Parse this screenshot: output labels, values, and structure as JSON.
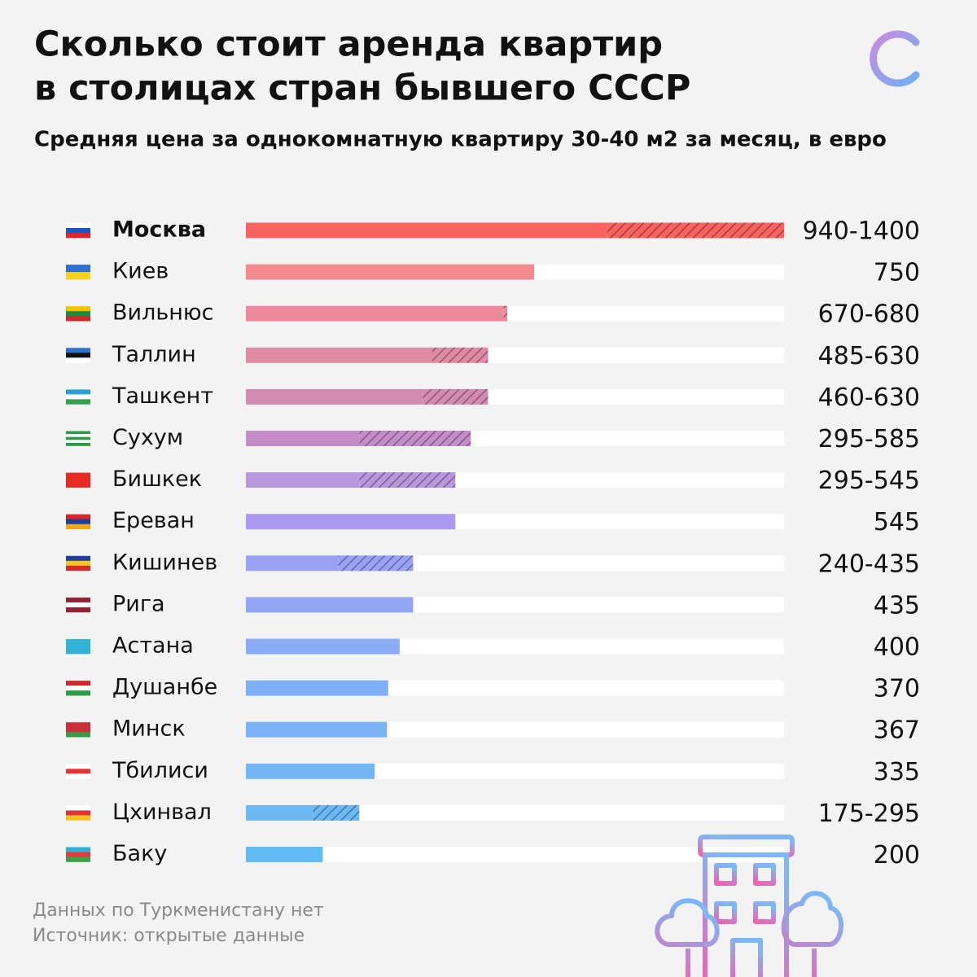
{
  "chart_data": {
    "type": "range_bar",
    "title": [
      "Сколько стоит аренда квартир",
      "в столицах стран бывшего СССР"
    ],
    "subtitle": "Средняя цена за однокомнатную квартиру 30-40 м2 за месяц, в евро",
    "categories": [
      "Москва",
      "Киев",
      "Вильнюс",
      "Таллин",
      "Ташкент",
      "Сухум",
      "Бишкек",
      "Ереван",
      "Кишинев",
      "Рига",
      "Астана",
      "Душанбе",
      "Минск",
      "Тбилиси",
      "Цхинвал",
      "Баку"
    ],
    "values": [
      940,
      750,
      670,
      485,
      460,
      295,
      295,
      545,
      240,
      435,
      400,
      370,
      367,
      335,
      175,
      200
    ],
    "values_high": [
      1400,
      null,
      680,
      630,
      630,
      585,
      545,
      null,
      435,
      null,
      null,
      null,
      null,
      null,
      295,
      null
    ],
    "value_labels": [
      "940-1400",
      "750",
      "670-680",
      "485-630",
      "460-630",
      "295-585",
      "295-545",
      "545",
      "240-435",
      "435",
      "400",
      "370",
      "367",
      "335",
      "175-295",
      "200"
    ],
    "colors": [
      "#f8625f",
      "#f38a8e",
      "#ec8a9c",
      "#e08aa6",
      "#d48bb2",
      "#c48cc8",
      "#b897dc",
      "#ab9af0",
      "#9aa2f6",
      "#93a6f5",
      "#8aabf6",
      "#7fb0f6",
      "#7ab4f7",
      "#73b6f8",
      "#6bb8f5",
      "#62bbf2"
    ],
    "xlim": [
      0,
      1400
    ],
    "notes": [
      "Данных по Туркменистану нет",
      "Источник: открытые данные"
    ]
  }
}
